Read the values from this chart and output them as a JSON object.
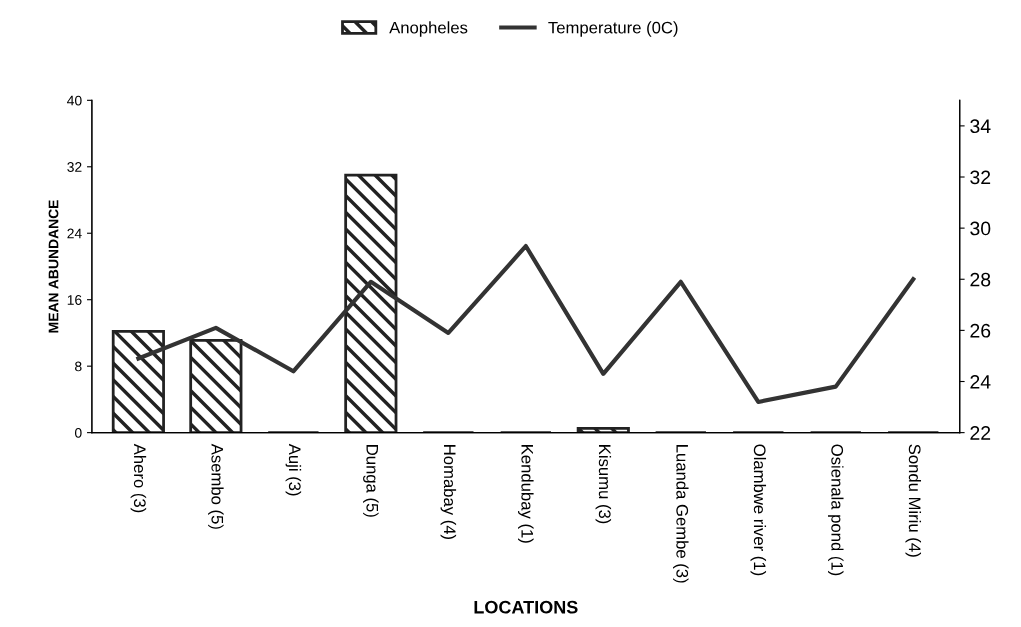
{
  "chart_data": {
    "type": "bar",
    "xlabel": "LOCATIONS",
    "ylabel": "MEAN ABUNDANCE",
    "categories": [
      "Ahero (3)",
      "Asembo (5)",
      "Auji (3)",
      "Dunga (5)",
      "Homabay (4)",
      "Kendubay (1)",
      "Kisumu (3)",
      "Luanda Gembe (3)",
      "Olambwe river (1)",
      "Osienala pond (1)",
      "Sondu Miriu (4)"
    ],
    "series": [
      {
        "name": "Anopheles",
        "color": "#222222",
        "values": [
          12.2,
          11.1,
          0,
          31.0,
          0,
          0,
          0.5,
          0,
          0,
          0,
          0
        ]
      },
      {
        "name": "Temperature (0C)",
        "type": "line",
        "axis": "y2",
        "color": "#333333",
        "values": [
          24.9,
          26.1,
          24.4,
          27.9,
          25.9,
          29.3,
          24.3,
          27.9,
          23.2,
          23.8,
          28.0
        ]
      }
    ],
    "ylim": [
      0,
      40
    ],
    "yticks": [
      0,
      8,
      16,
      24,
      32,
      40
    ],
    "y2lim": [
      22,
      35
    ],
    "y2ticks": [
      22,
      24,
      26,
      28,
      30,
      32,
      34
    ],
    "legend": "top",
    "grid": false,
    "marker": "none",
    "line_style": "solid"
  }
}
